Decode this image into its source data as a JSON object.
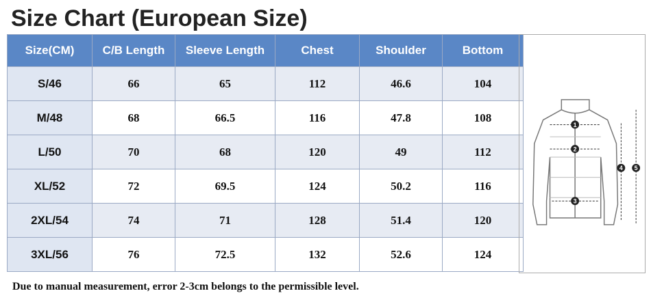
{
  "header": {
    "title": "Size Chart (European Size)"
  },
  "table": {
    "columns": [
      "Size(CM)",
      "C/B Length",
      "Sleeve Length",
      "Chest",
      "Shoulder",
      "Bottom"
    ],
    "rows": [
      [
        "S/46",
        "66",
        "65",
        "112",
        "46.6",
        "104"
      ],
      [
        "M/48",
        "68",
        "66.5",
        "116",
        "47.8",
        "108"
      ],
      [
        "L/50",
        "70",
        "68",
        "120",
        "49",
        "112"
      ],
      [
        "XL/52",
        "72",
        "69.5",
        "124",
        "50.2",
        "116"
      ],
      [
        "2XL/54",
        "74",
        "71",
        "128",
        "51.4",
        "120"
      ],
      [
        "3XL/56",
        "76",
        "72.5",
        "132",
        "52.6",
        "124"
      ]
    ]
  },
  "diagram": {
    "markers": [
      "1",
      "2",
      "3",
      "4",
      "5"
    ]
  },
  "note": "Due to manual measurement, error 2-3cm belongs to the permissible level."
}
